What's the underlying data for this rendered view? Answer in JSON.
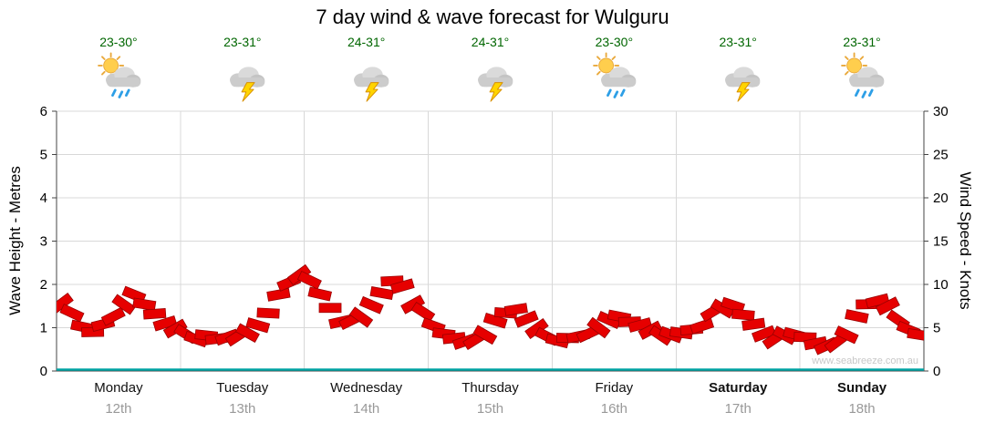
{
  "title": "7 day wind & wave forecast for Wulguru",
  "watermark": "www.seabreeze.com.au",
  "axes": {
    "left_label": "Wave Height - Metres",
    "right_label": "Wind Speed - Knots"
  },
  "colors": {
    "temp": "#006600",
    "date": "#999999",
    "barb": "#E60000",
    "barb_outline": "#990000",
    "baseline": "#00A3A3",
    "grid": "#D8D8D8",
    "axis": "#444444",
    "watermark": "#C8C8C8"
  },
  "chart_data": {
    "type": "bar",
    "subtype": "wind-barb-band",
    "title": "7 day wind & wave forecast for Wulguru",
    "left_axis": {
      "label": "Wave Height - Metres",
      "min": 0,
      "max": 6,
      "step": 1
    },
    "right_axis": {
      "label": "Wind Speed - Knots",
      "min": 0,
      "max": 30,
      "step": 5
    },
    "grid": true,
    "days": [
      {
        "name": "Monday",
        "date": "12th",
        "temp": "23-30°",
        "icon": "sun-shower",
        "weekend": false
      },
      {
        "name": "Tuesday",
        "date": "13th",
        "temp": "23-31°",
        "icon": "thunderstorm",
        "weekend": false
      },
      {
        "name": "Wednesday",
        "date": "14th",
        "temp": "24-31°",
        "icon": "thunderstorm",
        "weekend": false
      },
      {
        "name": "Thursday",
        "date": "15th",
        "temp": "24-31°",
        "icon": "thunderstorm",
        "weekend": false
      },
      {
        "name": "Friday",
        "date": "16th",
        "temp": "23-30°",
        "icon": "sun-shower",
        "weekend": false
      },
      {
        "name": "Saturday",
        "date": "17th",
        "temp": "23-31°",
        "icon": "thunderstorm",
        "weekend": true
      },
      {
        "name": "Sunday",
        "date": "18th",
        "temp": "23-31°",
        "icon": "sun-shower",
        "weekend": true
      }
    ],
    "wind_knots": [
      7.5,
      6.5,
      5.0,
      4.5,
      5.5,
      6.5,
      8.0,
      8.5,
      7.5,
      6.5,
      5.5,
      5.0,
      4.5,
      4.0,
      3.8,
      3.5,
      3.8,
      4.0,
      4.5,
      5.5,
      7.0,
      8.5,
      10.0,
      11.0,
      10.5,
      9.0,
      7.5,
      6.0,
      5.5,
      6.0,
      7.5,
      9.0,
      10.5,
      10.0,
      8.0,
      6.5,
      5.0,
      4.2,
      3.8,
      3.5,
      3.8,
      4.5,
      5.5,
      6.5,
      7.0,
      6.0,
      5.0,
      4.2,
      3.8,
      3.5,
      3.8,
      4.2,
      5.0,
      6.0,
      6.5,
      6.0,
      5.0,
      4.5,
      4.0,
      4.2,
      4.5,
      5.0,
      5.5,
      6.5,
      7.0,
      7.5,
      6.5,
      5.5,
      4.5,
      4.0,
      3.8,
      4.0,
      3.8,
      3.2,
      3.0,
      3.5,
      4.5,
      6.0,
      7.5,
      8.0,
      7.5,
      6.0,
      5.0,
      4.5
    ]
  }
}
